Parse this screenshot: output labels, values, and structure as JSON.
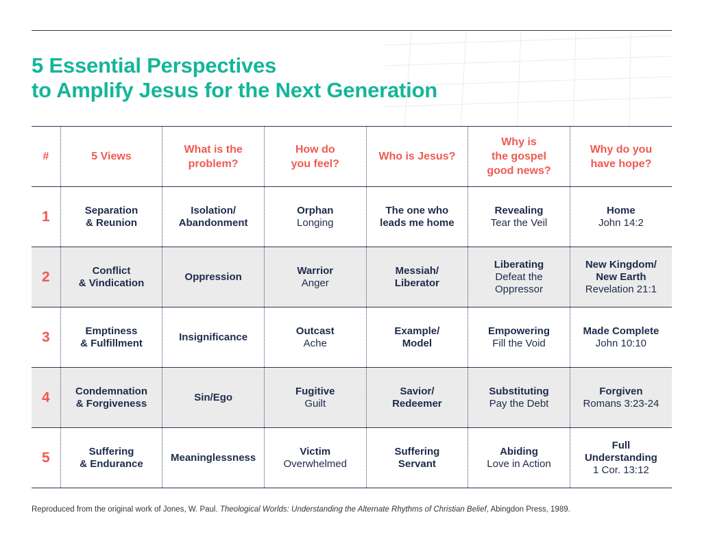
{
  "title": {
    "line1": "5 Essential Perspectives",
    "line2": "to Amplify Jesus for the Next Generation"
  },
  "colors": {
    "title": "#15b59a",
    "header": "#ef5a52",
    "text": "#1d2b4a",
    "shade": "#ebebeb"
  },
  "table": {
    "headers": {
      "num": "#",
      "views": "5 Views",
      "problem": [
        "What is the",
        "problem?"
      ],
      "feel": [
        "How do",
        "you feel?"
      ],
      "jesus": "Who is Jesus?",
      "gospel": [
        "Why is",
        "the gospel",
        "good news?"
      ],
      "hope": [
        "Why do you",
        "have hope?"
      ]
    },
    "rows": [
      {
        "num": "1",
        "views": [
          "Separation",
          "& Reunion"
        ],
        "problem": [
          "Isolation/",
          "Abandonment"
        ],
        "feel": {
          "bold": "Orphan",
          "regular": "Longing"
        },
        "jesus": [
          "The one who",
          "leads me home"
        ],
        "gospel": {
          "bold": "Revealing",
          "regular": [
            "Tear the Veil"
          ]
        },
        "hope": {
          "bold": [
            "Home"
          ],
          "regular": "John 14:2"
        }
      },
      {
        "num": "2",
        "views": [
          "Conflict",
          "& Vindication"
        ],
        "problem": [
          "Oppression"
        ],
        "feel": {
          "bold": "Warrior",
          "regular": "Anger"
        },
        "jesus": [
          "Messiah/",
          "Liberator"
        ],
        "gospel": {
          "bold": "Liberating",
          "regular": [
            "Defeat the",
            "Oppressor"
          ]
        },
        "hope": {
          "bold": [
            "New Kingdom/",
            "New Earth"
          ],
          "regular": "Revelation 21:1"
        }
      },
      {
        "num": "3",
        "views": [
          "Emptiness",
          "& Fulfillment"
        ],
        "problem": [
          "Insignificance"
        ],
        "feel": {
          "bold": "Outcast",
          "regular": "Ache"
        },
        "jesus": [
          "Example/",
          "Model"
        ],
        "gospel": {
          "bold": "Empowering",
          "regular": [
            "Fill the Void"
          ]
        },
        "hope": {
          "bold": [
            "Made Complete"
          ],
          "regular": "John 10:10"
        }
      },
      {
        "num": "4",
        "views": [
          "Condemnation",
          "& Forgiveness"
        ],
        "problem": [
          "Sin/Ego"
        ],
        "feel": {
          "bold": "Fugitive",
          "regular": "Guilt"
        },
        "jesus": [
          "Savior/",
          "Redeemer"
        ],
        "gospel": {
          "bold": "Substituting",
          "regular": [
            "Pay the Debt"
          ]
        },
        "hope": {
          "bold": [
            "Forgiven"
          ],
          "regular": "Romans 3:23-24"
        }
      },
      {
        "num": "5",
        "views": [
          "Suffering",
          "& Endurance"
        ],
        "problem": [
          "Meaninglessness"
        ],
        "feel": {
          "bold": "Victim",
          "regular": "Overwhelmed"
        },
        "jesus": [
          "Suffering",
          "Servant"
        ],
        "gospel": {
          "bold": "Abiding",
          "regular": [
            "Love in Action"
          ]
        },
        "hope": {
          "bold": [
            "Full",
            "Understanding"
          ],
          "regular": "1 Cor. 13:12"
        }
      }
    ]
  },
  "footnote": {
    "prefix": "Reproduced from the original work of Jones, W. Paul. ",
    "italic": "Theological Worlds: Understanding the Alternate Rhythms of Christian Belief",
    "suffix": ", Abingdon Press, 1989."
  }
}
